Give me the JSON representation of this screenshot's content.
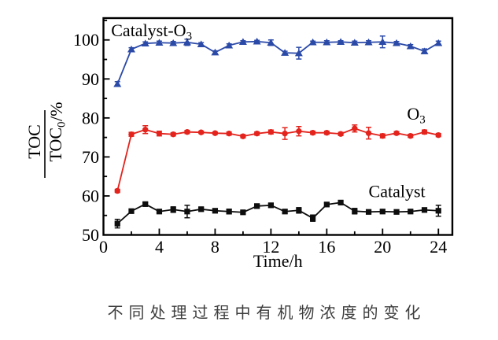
{
  "figure": {
    "caption": "不同处理过程中有机物浓度的变化"
  },
  "chart_data": {
    "type": "line",
    "title": "",
    "xlabel": "Time/h",
    "ylabel": {
      "numerator": "TOC",
      "denominator": "TOC",
      "denominator_sub": "0",
      "suffix": "/%"
    },
    "xlim": [
      0,
      25
    ],
    "ylim": [
      50,
      105.6
    ],
    "x_major_ticks": [
      0,
      4,
      8,
      12,
      16,
      20,
      24
    ],
    "x_minor_ticks": [
      2,
      6,
      10,
      14,
      18,
      22
    ],
    "y_major_ticks": [
      50,
      60,
      70,
      80,
      90,
      100
    ],
    "y_minor_ticks": [
      55,
      65,
      75,
      85,
      95,
      105
    ],
    "grid": false,
    "frame": true,
    "legend_position": "in-plot text labels",
    "x": [
      1,
      2,
      3,
      4,
      5,
      6,
      7,
      8,
      9,
      10,
      11,
      12,
      13,
      14,
      15,
      16,
      17,
      18,
      19,
      20,
      21,
      22,
      23,
      24
    ],
    "series": [
      {
        "name": "catalyst-o3",
        "label": "Catalyst-O",
        "label_sub": "3",
        "label_anchor": {
          "x": 0.55,
          "y": 101.0
        },
        "color": "#2b4aa8",
        "marker": "triangle",
        "values": [
          88.7,
          97.6,
          99.1,
          99.3,
          99.2,
          99.4,
          98.9,
          96.8,
          98.6,
          99.5,
          99.6,
          99.3,
          96.7,
          96.6,
          99.4,
          99.4,
          99.5,
          99.3,
          99.4,
          99.5,
          99.2,
          98.4,
          97.1,
          99.2
        ],
        "errors": [
          0.6,
          0.4,
          0.4,
          0.4,
          0.4,
          0.8,
          0.4,
          0.4,
          0.4,
          0.3,
          0.3,
          0.7,
          0.4,
          1.5,
          0.3,
          0.4,
          0.3,
          0.4,
          0.4,
          1.5,
          0.4,
          0.4,
          0.6,
          0.5
        ]
      },
      {
        "name": "o3",
        "label": "O",
        "label_sub": "3",
        "label_anchor": {
          "x": 21.75,
          "y": 79.6
        },
        "color": "#e3231c",
        "marker": "circle",
        "values": [
          61.3,
          75.8,
          77.0,
          76.0,
          75.8,
          76.4,
          76.3,
          76.1,
          76.0,
          75.3,
          76.0,
          76.4,
          76.0,
          76.6,
          76.2,
          76.2,
          75.9,
          77.3,
          76.1,
          75.4,
          76.1,
          75.4,
          76.4,
          75.6
        ],
        "errors": [
          0.4,
          0.5,
          1.0,
          0.6,
          0.4,
          0.4,
          0.3,
          0.3,
          0.4,
          0.4,
          0.4,
          0.5,
          1.5,
          1.2,
          0.4,
          0.4,
          0.4,
          0.9,
          1.5,
          0.5,
          0.4,
          0.4,
          0.5,
          0.4
        ]
      },
      {
        "name": "catalyst",
        "label": "Catalyst",
        "label_sub": "",
        "label_anchor": {
          "x": 19.0,
          "y": 59.7
        },
        "color": "#0d0d0d",
        "marker": "square",
        "values": [
          52.9,
          56.1,
          57.9,
          56.0,
          56.5,
          56.0,
          56.6,
          56.2,
          56.0,
          55.8,
          57.4,
          57.6,
          56.0,
          56.3,
          54.3,
          57.8,
          58.3,
          56.1,
          55.9,
          56.0,
          55.9,
          56.0,
          56.4,
          56.2
        ],
        "errors": [
          1.1,
          0.4,
          0.4,
          0.4,
          0.7,
          1.6,
          0.4,
          0.5,
          0.6,
          0.4,
          0.4,
          0.4,
          0.5,
          0.7,
          0.8,
          0.4,
          0.4,
          0.7,
          0.4,
          0.4,
          0.4,
          0.4,
          0.4,
          1.4
        ]
      }
    ]
  }
}
